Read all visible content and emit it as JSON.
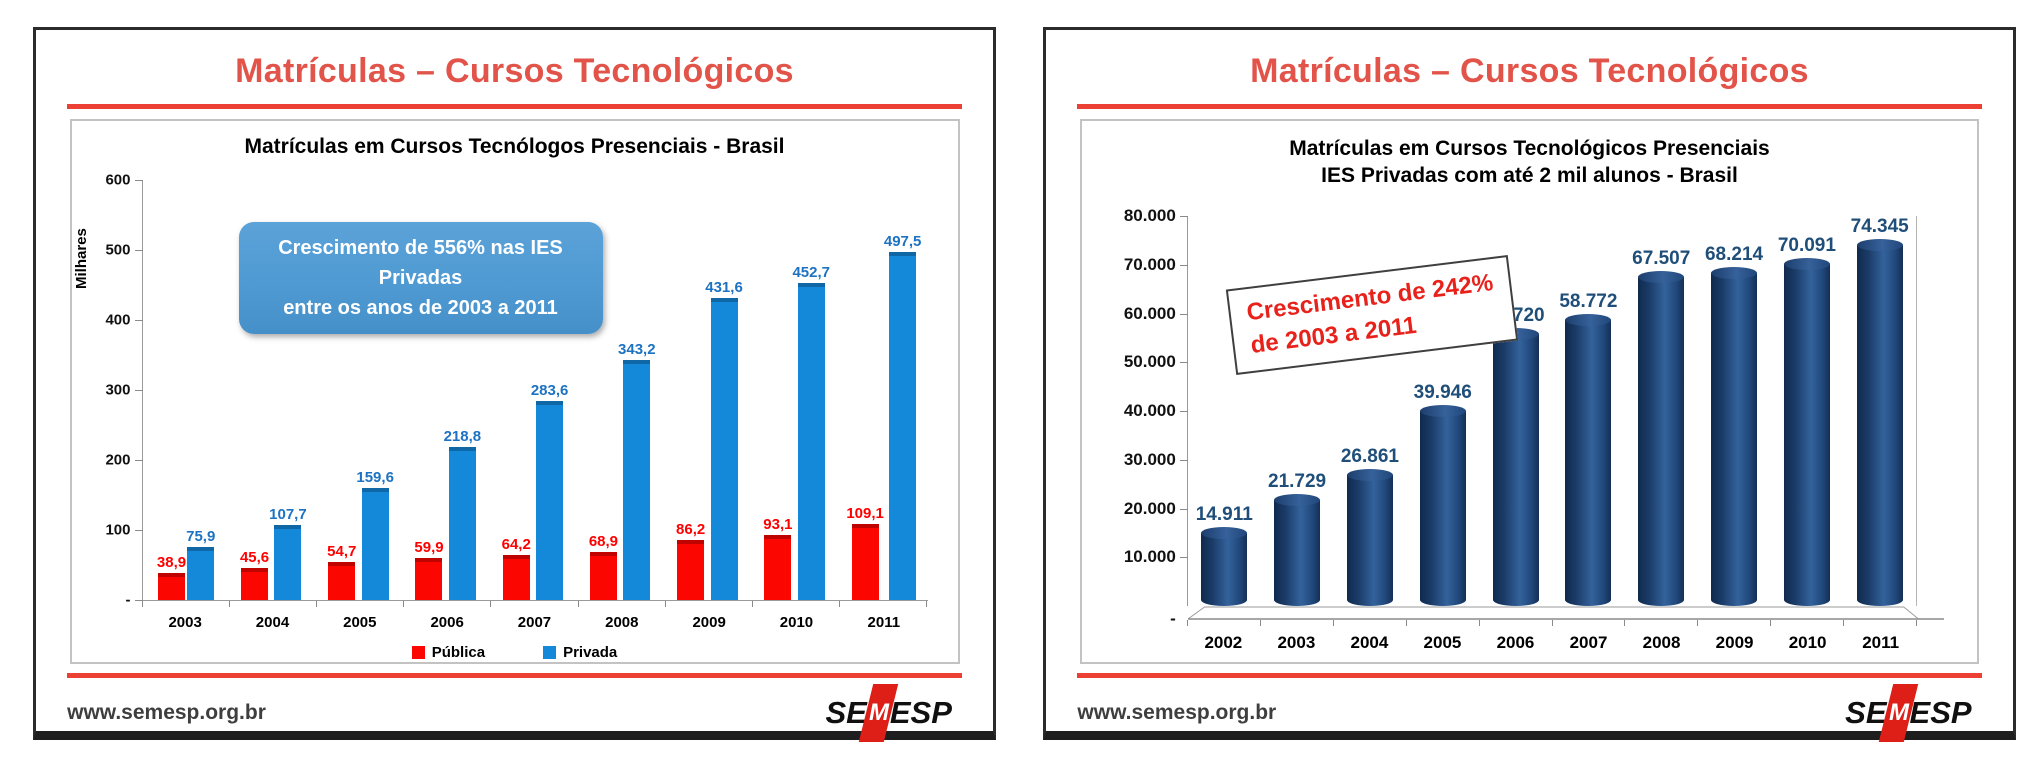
{
  "slides": {
    "left": {
      "page_title": "Matrículas – Cursos Tecnológicos",
      "footer_url": "www.semesp.org.br",
      "logo": {
        "se": "SE",
        "m": "M",
        "esp": "ESP"
      }
    },
    "right": {
      "page_title": "Matrículas – Cursos Tecnológicos",
      "footer_url": "www.semesp.org.br",
      "logo": {
        "se": "SE",
        "m": "M",
        "esp": "ESP"
      }
    }
  },
  "colors": {
    "title_red": "#e2544a",
    "divider_red": "#ed4034",
    "publica_bar": "#fb0600",
    "publica_label": "#ff0000",
    "privada_bar": "#1589d9",
    "privada_label": "#1d72c2",
    "callout_blue": "#4f9ad3",
    "cylinder_navy": "#1b3c69",
    "cylinder_label": "#1f4e79",
    "annotation_red": "#e8221b",
    "frame_border": "#c3c3c3"
  },
  "chart_data": [
    {
      "type": "bar",
      "title": "Matrículas em Cursos Tecnólogos Presenciais - Brasil",
      "xlabel": "",
      "ylabel": "Milhares",
      "ylim": [
        0,
        600
      ],
      "grid": false,
      "legend_position": "bottom",
      "categories": [
        "2003",
        "2004",
        "2005",
        "2006",
        "2007",
        "2008",
        "2009",
        "2010",
        "2011"
      ],
      "series": [
        {
          "name": "Pública",
          "color": "#fb0600",
          "label_color": "#ff0000",
          "values": [
            38.9,
            45.6,
            54.7,
            59.9,
            64.2,
            68.9,
            86.2,
            93.1,
            109.1
          ],
          "labels": [
            "38,9",
            "45,6",
            "54,7",
            "59,9",
            "64,2",
            "68,9",
            "86,2",
            "93,1",
            "109,1"
          ]
        },
        {
          "name": "Privada",
          "color": "#1589d9",
          "label_color": "#1d72c2",
          "values": [
            75.9,
            107.7,
            159.6,
            218.8,
            283.6,
            343.2,
            431.6,
            452.7,
            497.5
          ],
          "labels": [
            "75,9",
            "107,7",
            "159,6",
            "218,8",
            "283,6",
            "343,2",
            "431,6",
            "452,7",
            "497,5"
          ]
        }
      ],
      "yticks": [
        {
          "v": 600,
          "t": "600"
        },
        {
          "v": 500,
          "t": "500"
        },
        {
          "v": 400,
          "t": "400"
        },
        {
          "v": 300,
          "t": "300"
        },
        {
          "v": 200,
          "t": "200"
        },
        {
          "v": 100,
          "t": "100"
        },
        {
          "v": 0,
          "t": "-"
        }
      ],
      "annotation_line1": "Crescimento de 556% nas IES Privadas",
      "annotation_line2": "entre os anos de 2003 a 2011"
    },
    {
      "type": "bar",
      "style": "3d-cylinder",
      "title_line1": "Matrículas em Cursos Tecnológicos Presenciais",
      "title_line2": "IES Privadas com até 2 mil alunos - Brasil",
      "xlabel": "",
      "ylabel": "",
      "ylim": [
        0,
        80000
      ],
      "grid": false,
      "legend_position": "none",
      "categories": [
        "2002",
        "2003",
        "2004",
        "2005",
        "2006",
        "2007",
        "2008",
        "2009",
        "2010",
        "2011"
      ],
      "values": [
        14911,
        21729,
        26861,
        39946,
        55720,
        58772,
        67507,
        68214,
        70091,
        74345
      ],
      "labels": [
        "14.911",
        "21.729",
        "26.861",
        "39.946",
        "55.720",
        "58.772",
        "67.507",
        "68.214",
        "70.091",
        "74.345"
      ],
      "bar_color": "#1b3c69",
      "label_color": "#1f4e79",
      "yticks": [
        {
          "v": 80000,
          "t": "80.000"
        },
        {
          "v": 70000,
          "t": "70.000"
        },
        {
          "v": 60000,
          "t": "60.000"
        },
        {
          "v": 50000,
          "t": "50.000"
        },
        {
          "v": 40000,
          "t": "40.000"
        },
        {
          "v": 30000,
          "t": "30.000"
        },
        {
          "v": 20000,
          "t": "20.000"
        },
        {
          "v": 10000,
          "t": "10.000"
        },
        {
          "v": 0,
          "t": "-"
        }
      ],
      "annotation_line1": "Crescimento de 242%",
      "annotation_line2": "de 2003 a 2011"
    }
  ]
}
